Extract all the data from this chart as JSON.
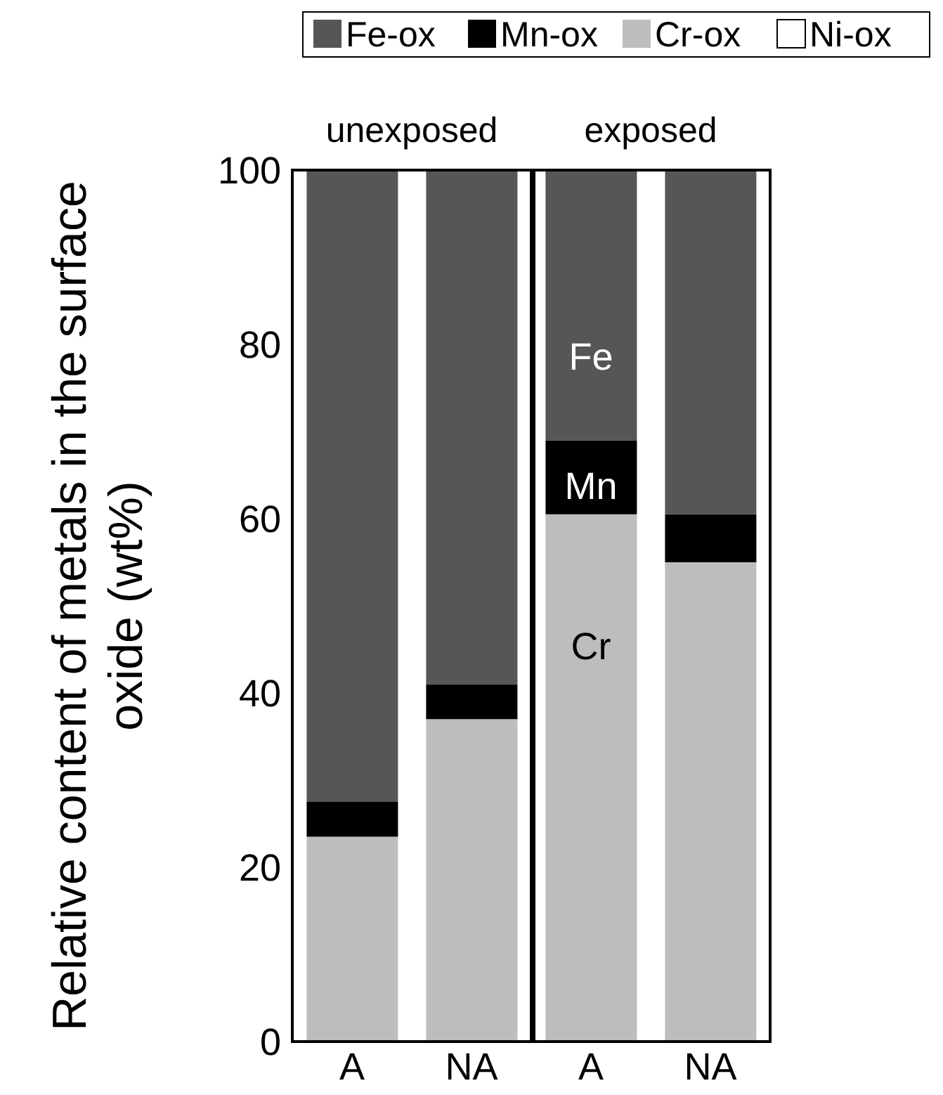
{
  "chart_data": {
    "type": "bar",
    "stacked": true,
    "ylabel": "Relative content of metals in the surface oxide (wt%)",
    "categories": [
      "A",
      "NA",
      "A",
      "NA"
    ],
    "series": [
      {
        "name": "Cr-ox",
        "color": "#bdbdbd",
        "values": [
          23.5,
          37,
          60.5,
          55
        ]
      },
      {
        "name": "Mn-ox",
        "color": "#000000",
        "values": [
          4,
          4,
          8.5,
          5.5
        ]
      },
      {
        "name": "Fe-ox",
        "color": "#555658",
        "values": [
          72.5,
          59,
          31,
          39.5
        ]
      },
      {
        "name": "Ni-ox",
        "color": "#ffffff",
        "values": [
          0,
          0,
          0,
          0
        ]
      }
    ],
    "ylim": [
      0,
      100
    ],
    "yticks": [
      0,
      20,
      40,
      60,
      80,
      100
    ],
    "legend": "top",
    "annotations": [
      "unexposed",
      "exposed",
      "Fe",
      "Mn",
      "Cr"
    ]
  }
}
